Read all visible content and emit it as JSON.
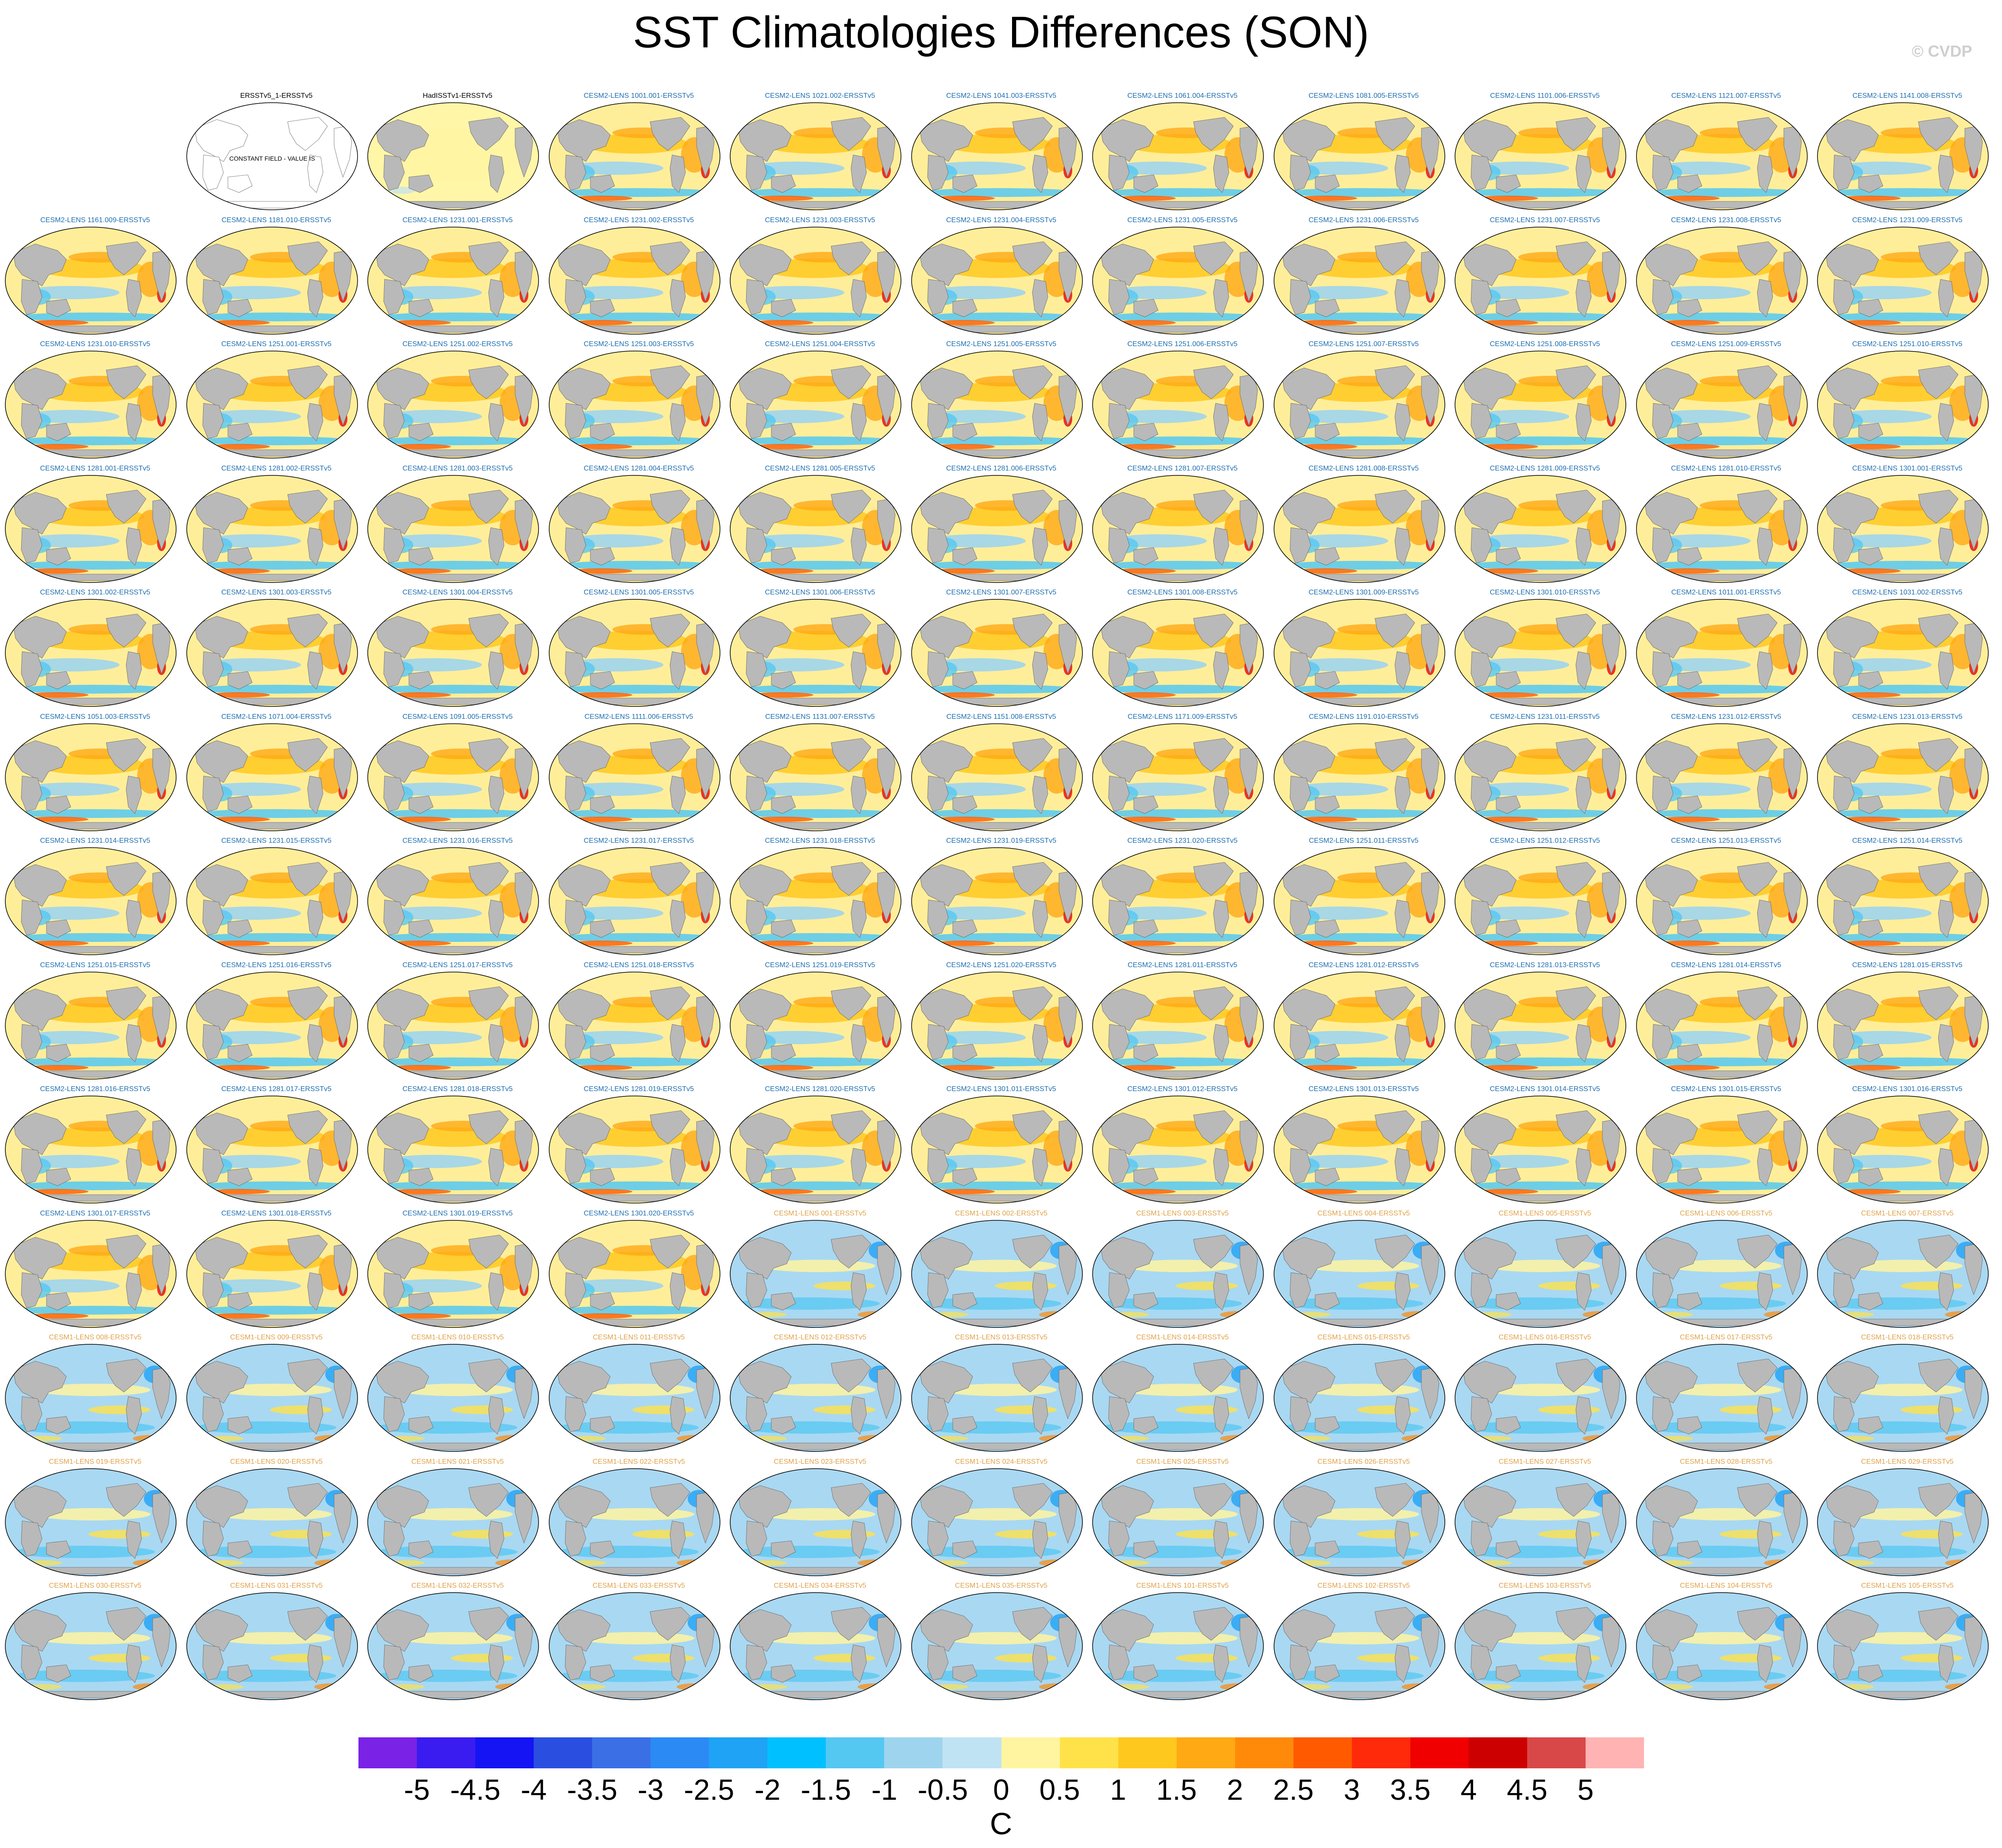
{
  "title": "SST Climatologies Differences (SON)",
  "copyright": "© CVDP",
  "colors": {
    "ocean_base": "#ffee99",
    "land": "#b9b9b9",
    "title_obs": "#000000",
    "title_cesm2": "#1f6fb0",
    "title_cesm1": "#e0a24a"
  },
  "panels": [
    {
      "label": "",
      "kind": "empty"
    },
    {
      "label": "ERSSTv5_1-ERSSTv5",
      "kind": "constant",
      "note": "CONSTANT FIELD - VALUE IS"
    },
    {
      "label": "HadISSTv1-ERSSTv5",
      "kind": "obs"
    },
    {
      "label": "CESM2-LENS 1001.001-ERSSTv5",
      "kind": "cesm2"
    },
    {
      "label": "CESM2-LENS 1021.002-ERSSTv5",
      "kind": "cesm2"
    },
    {
      "label": "CESM2-LENS 1041.003-ERSSTv5",
      "kind": "cesm2"
    },
    {
      "label": "CESM2-LENS 1061.004-ERSSTv5",
      "kind": "cesm2"
    },
    {
      "label": "CESM2-LENS 1081.005-ERSSTv5",
      "kind": "cesm2"
    },
    {
      "label": "CESM2-LENS 1101.006-ERSSTv5",
      "kind": "cesm2"
    },
    {
      "label": "CESM2-LENS 1121.007-ERSSTv5",
      "kind": "cesm2"
    },
    {
      "label": "CESM2-LENS 1141.008-ERSSTv5",
      "kind": "cesm2"
    },
    {
      "label": "CESM2-LENS 1161.009-ERSSTv5",
      "kind": "cesm2"
    },
    {
      "label": "CESM2-LENS 1181.010-ERSSTv5",
      "kind": "cesm2"
    },
    {
      "label": "CESM2-LENS 1231.001-ERSSTv5",
      "kind": "cesm2"
    },
    {
      "label": "CESM2-LENS 1231.002-ERSSTv5",
      "kind": "cesm2"
    },
    {
      "label": "CESM2-LENS 1231.003-ERSSTv5",
      "kind": "cesm2"
    },
    {
      "label": "CESM2-LENS 1231.004-ERSSTv5",
      "kind": "cesm2"
    },
    {
      "label": "CESM2-LENS 1231.005-ERSSTv5",
      "kind": "cesm2"
    },
    {
      "label": "CESM2-LENS 1231.006-ERSSTv5",
      "kind": "cesm2"
    },
    {
      "label": "CESM2-LENS 1231.007-ERSSTv5",
      "kind": "cesm2"
    },
    {
      "label": "CESM2-LENS 1231.008-ERSSTv5",
      "kind": "cesm2"
    },
    {
      "label": "CESM2-LENS 1231.009-ERSSTv5",
      "kind": "cesm2"
    },
    {
      "label": "CESM2-LENS 1231.010-ERSSTv5",
      "kind": "cesm2"
    },
    {
      "label": "CESM2-LENS 1251.001-ERSSTv5",
      "kind": "cesm2"
    },
    {
      "label": "CESM2-LENS 1251.002-ERSSTv5",
      "kind": "cesm2"
    },
    {
      "label": "CESM2-LENS 1251.003-ERSSTv5",
      "kind": "cesm2"
    },
    {
      "label": "CESM2-LENS 1251.004-ERSSTv5",
      "kind": "cesm2"
    },
    {
      "label": "CESM2-LENS 1251.005-ERSSTv5",
      "kind": "cesm2"
    },
    {
      "label": "CESM2-LENS 1251.006-ERSSTv5",
      "kind": "cesm2"
    },
    {
      "label": "CESM2-LENS 1251.007-ERSSTv5",
      "kind": "cesm2"
    },
    {
      "label": "CESM2-LENS 1251.008-ERSSTv5",
      "kind": "cesm2"
    },
    {
      "label": "CESM2-LENS 1251.009-ERSSTv5",
      "kind": "cesm2"
    },
    {
      "label": "CESM2-LENS 1251.010-ERSSTv5",
      "kind": "cesm2"
    },
    {
      "label": "CESM2-LENS 1281.001-ERSSTv5",
      "kind": "cesm2"
    },
    {
      "label": "CESM2-LENS 1281.002-ERSSTv5",
      "kind": "cesm2"
    },
    {
      "label": "CESM2-LENS 1281.003-ERSSTv5",
      "kind": "cesm2"
    },
    {
      "label": "CESM2-LENS 1281.004-ERSSTv5",
      "kind": "cesm2"
    },
    {
      "label": "CESM2-LENS 1281.005-ERSSTv5",
      "kind": "cesm2"
    },
    {
      "label": "CESM2-LENS 1281.006-ERSSTv5",
      "kind": "cesm2"
    },
    {
      "label": "CESM2-LENS 1281.007-ERSSTv5",
      "kind": "cesm2"
    },
    {
      "label": "CESM2-LENS 1281.008-ERSSTv5",
      "kind": "cesm2"
    },
    {
      "label": "CESM2-LENS 1281.009-ERSSTv5",
      "kind": "cesm2"
    },
    {
      "label": "CESM2-LENS 1281.010-ERSSTv5",
      "kind": "cesm2"
    },
    {
      "label": "CESM2-LENS 1301.001-ERSSTv5",
      "kind": "cesm2"
    },
    {
      "label": "CESM2-LENS 1301.002-ERSSTv5",
      "kind": "cesm2"
    },
    {
      "label": "CESM2-LENS 1301.003-ERSSTv5",
      "kind": "cesm2"
    },
    {
      "label": "CESM2-LENS 1301.004-ERSSTv5",
      "kind": "cesm2"
    },
    {
      "label": "CESM2-LENS 1301.005-ERSSTv5",
      "kind": "cesm2"
    },
    {
      "label": "CESM2-LENS 1301.006-ERSSTv5",
      "kind": "cesm2"
    },
    {
      "label": "CESM2-LENS 1301.007-ERSSTv5",
      "kind": "cesm2"
    },
    {
      "label": "CESM2-LENS 1301.008-ERSSTv5",
      "kind": "cesm2"
    },
    {
      "label": "CESM2-LENS 1301.009-ERSSTv5",
      "kind": "cesm2"
    },
    {
      "label": "CESM2-LENS 1301.010-ERSSTv5",
      "kind": "cesm2"
    },
    {
      "label": "CESM2-LENS 1011.001-ERSSTv5",
      "kind": "cesm2"
    },
    {
      "label": "CESM2-LENS 1031.002-ERSSTv5",
      "kind": "cesm2"
    },
    {
      "label": "CESM2-LENS 1051.003-ERSSTv5",
      "kind": "cesm2"
    },
    {
      "label": "CESM2-LENS 1071.004-ERSSTv5",
      "kind": "cesm2"
    },
    {
      "label": "CESM2-LENS 1091.005-ERSSTv5",
      "kind": "cesm2"
    },
    {
      "label": "CESM2-LENS 1111.006-ERSSTv5",
      "kind": "cesm2"
    },
    {
      "label": "CESM2-LENS 1131.007-ERSSTv5",
      "kind": "cesm2"
    },
    {
      "label": "CESM2-LENS 1151.008-ERSSTv5",
      "kind": "cesm2"
    },
    {
      "label": "CESM2-LENS 1171.009-ERSSTv5",
      "kind": "cesm2"
    },
    {
      "label": "CESM2-LENS 1191.010-ERSSTv5",
      "kind": "cesm2"
    },
    {
      "label": "CESM2-LENS 1231.011-ERSSTv5",
      "kind": "cesm2"
    },
    {
      "label": "CESM2-LENS 1231.012-ERSSTv5",
      "kind": "cesm2"
    },
    {
      "label": "CESM2-LENS 1231.013-ERSSTv5",
      "kind": "cesm2"
    },
    {
      "label": "CESM2-LENS 1231.014-ERSSTv5",
      "kind": "cesm2"
    },
    {
      "label": "CESM2-LENS 1231.015-ERSSTv5",
      "kind": "cesm2"
    },
    {
      "label": "CESM2-LENS 1231.016-ERSSTv5",
      "kind": "cesm2"
    },
    {
      "label": "CESM2-LENS 1231.017-ERSSTv5",
      "kind": "cesm2"
    },
    {
      "label": "CESM2-LENS 1231.018-ERSSTv5",
      "kind": "cesm2"
    },
    {
      "label": "CESM2-LENS 1231.019-ERSSTv5",
      "kind": "cesm2"
    },
    {
      "label": "CESM2-LENS 1231.020-ERSSTv5",
      "kind": "cesm2"
    },
    {
      "label": "CESM2-LENS 1251.011-ERSSTv5",
      "kind": "cesm2"
    },
    {
      "label": "CESM2-LENS 1251.012-ERSSTv5",
      "kind": "cesm2"
    },
    {
      "label": "CESM2-LENS 1251.013-ERSSTv5",
      "kind": "cesm2"
    },
    {
      "label": "CESM2-LENS 1251.014-ERSSTv5",
      "kind": "cesm2"
    },
    {
      "label": "CESM2-LENS 1251.015-ERSSTv5",
      "kind": "cesm2"
    },
    {
      "label": "CESM2-LENS 1251.016-ERSSTv5",
      "kind": "cesm2"
    },
    {
      "label": "CESM2-LENS 1251.017-ERSSTv5",
      "kind": "cesm2"
    },
    {
      "label": "CESM2-LENS 1251.018-ERSSTv5",
      "kind": "cesm2"
    },
    {
      "label": "CESM2-LENS 1251.019-ERSSTv5",
      "kind": "cesm2"
    },
    {
      "label": "CESM2-LENS 1251.020-ERSSTv5",
      "kind": "cesm2"
    },
    {
      "label": "CESM2-LENS 1281.011-ERSSTv5",
      "kind": "cesm2"
    },
    {
      "label": "CESM2-LENS 1281.012-ERSSTv5",
      "kind": "cesm2"
    },
    {
      "label": "CESM2-LENS 1281.013-ERSSTv5",
      "kind": "cesm2"
    },
    {
      "label": "CESM2-LENS 1281.014-ERSSTv5",
      "kind": "cesm2"
    },
    {
      "label": "CESM2-LENS 1281.015-ERSSTv5",
      "kind": "cesm2"
    },
    {
      "label": "CESM2-LENS 1281.016-ERSSTv5",
      "kind": "cesm2"
    },
    {
      "label": "CESM2-LENS 1281.017-ERSSTv5",
      "kind": "cesm2"
    },
    {
      "label": "CESM2-LENS 1281.018-ERSSTv5",
      "kind": "cesm2"
    },
    {
      "label": "CESM2-LENS 1281.019-ERSSTv5",
      "kind": "cesm2"
    },
    {
      "label": "CESM2-LENS 1281.020-ERSSTv5",
      "kind": "cesm2"
    },
    {
      "label": "CESM2-LENS 1301.011-ERSSTv5",
      "kind": "cesm2"
    },
    {
      "label": "CESM2-LENS 1301.012-ERSSTv5",
      "kind": "cesm2"
    },
    {
      "label": "CESM2-LENS 1301.013-ERSSTv5",
      "kind": "cesm2"
    },
    {
      "label": "CESM2-LENS 1301.014-ERSSTv5",
      "kind": "cesm2"
    },
    {
      "label": "CESM2-LENS 1301.015-ERSSTv5",
      "kind": "cesm2"
    },
    {
      "label": "CESM2-LENS 1301.016-ERSSTv5",
      "kind": "cesm2"
    },
    {
      "label": "CESM2-LENS 1301.017-ERSSTv5",
      "kind": "cesm2"
    },
    {
      "label": "CESM2-LENS 1301.018-ERSSTv5",
      "kind": "cesm2"
    },
    {
      "label": "CESM2-LENS 1301.019-ERSSTv5",
      "kind": "cesm2"
    },
    {
      "label": "CESM2-LENS 1301.020-ERSSTv5",
      "kind": "cesm2"
    },
    {
      "label": "CESM1-LENS 001-ERSSTv5",
      "kind": "cesm1"
    },
    {
      "label": "CESM1-LENS 002-ERSSTv5",
      "kind": "cesm1"
    },
    {
      "label": "CESM1-LENS 003-ERSSTv5",
      "kind": "cesm1"
    },
    {
      "label": "CESM1-LENS 004-ERSSTv5",
      "kind": "cesm1"
    },
    {
      "label": "CESM1-LENS 005-ERSSTv5",
      "kind": "cesm1"
    },
    {
      "label": "CESM1-LENS 006-ERSSTv5",
      "kind": "cesm1"
    },
    {
      "label": "CESM1-LENS 007-ERSSTv5",
      "kind": "cesm1"
    },
    {
      "label": "CESM1-LENS 008-ERSSTv5",
      "kind": "cesm1"
    },
    {
      "label": "CESM1-LENS 009-ERSSTv5",
      "kind": "cesm1"
    },
    {
      "label": "CESM1-LENS 010-ERSSTv5",
      "kind": "cesm1"
    },
    {
      "label": "CESM1-LENS 011-ERSSTv5",
      "kind": "cesm1"
    },
    {
      "label": "CESM1-LENS 012-ERSSTv5",
      "kind": "cesm1"
    },
    {
      "label": "CESM1-LENS 013-ERSSTv5",
      "kind": "cesm1"
    },
    {
      "label": "CESM1-LENS 014-ERSSTv5",
      "kind": "cesm1"
    },
    {
      "label": "CESM1-LENS 015-ERSSTv5",
      "kind": "cesm1"
    },
    {
      "label": "CESM1-LENS 016-ERSSTv5",
      "kind": "cesm1"
    },
    {
      "label": "CESM1-LENS 017-ERSSTv5",
      "kind": "cesm1"
    },
    {
      "label": "CESM1-LENS 018-ERSSTv5",
      "kind": "cesm1"
    },
    {
      "label": "CESM1-LENS 019-ERSSTv5",
      "kind": "cesm1"
    },
    {
      "label": "CESM1-LENS 020-ERSSTv5",
      "kind": "cesm1"
    },
    {
      "label": "CESM1-LENS 021-ERSSTv5",
      "kind": "cesm1"
    },
    {
      "label": "CESM1-LENS 022-ERSSTv5",
      "kind": "cesm1"
    },
    {
      "label": "CESM1-LENS 023-ERSSTv5",
      "kind": "cesm1"
    },
    {
      "label": "CESM1-LENS 024-ERSSTv5",
      "kind": "cesm1"
    },
    {
      "label": "CESM1-LENS 025-ERSSTv5",
      "kind": "cesm1"
    },
    {
      "label": "CESM1-LENS 026-ERSSTv5",
      "kind": "cesm1"
    },
    {
      "label": "CESM1-LENS 027-ERSSTv5",
      "kind": "cesm1"
    },
    {
      "label": "CESM1-LENS 028-ERSSTv5",
      "kind": "cesm1"
    },
    {
      "label": "CESM1-LENS 029-ERSSTv5",
      "kind": "cesm1"
    },
    {
      "label": "CESM1-LENS 030-ERSSTv5",
      "kind": "cesm1"
    },
    {
      "label": "CESM1-LENS 031-ERSSTv5",
      "kind": "cesm1"
    },
    {
      "label": "CESM1-LENS 032-ERSSTv5",
      "kind": "cesm1"
    },
    {
      "label": "CESM1-LENS 033-ERSSTv5",
      "kind": "cesm1"
    },
    {
      "label": "CESM1-LENS 034-ERSSTv5",
      "kind": "cesm1"
    },
    {
      "label": "CESM1-LENS 035-ERSSTv5",
      "kind": "cesm1"
    },
    {
      "label": "CESM1-LENS 101-ERSSTv5",
      "kind": "cesm1"
    },
    {
      "label": "CESM1-LENS 102-ERSSTv5",
      "kind": "cesm1"
    },
    {
      "label": "CESM1-LENS 103-ERSSTv5",
      "kind": "cesm1"
    },
    {
      "label": "CESM1-LENS 104-ERSSTv5",
      "kind": "cesm1"
    },
    {
      "label": "CESM1-LENS 105-ERSSTv5",
      "kind": "cesm1"
    }
  ],
  "colorbar": {
    "colors": [
      "#7a22e6",
      "#3a1cf0",
      "#1414f5",
      "#2a4fe0",
      "#3a6fe6",
      "#2c8af5",
      "#1fa3f5",
      "#00c0ff",
      "#55c8f2",
      "#9fd4ee",
      "#bfe3f3",
      "#fff5a0",
      "#ffe24a",
      "#ffc81e",
      "#ffa914",
      "#ff8a0a",
      "#ff5a00",
      "#ff2a0a",
      "#f00000",
      "#cc0000",
      "#d84848",
      "#ffb3b3"
    ],
    "labels": [
      "-5",
      "-4.5",
      "-4",
      "-3.5",
      "-3",
      "-2.5",
      "-2",
      "-1.5",
      "-1",
      "-0.5",
      "0",
      "0.5",
      "1",
      "1.5",
      "2",
      "2.5",
      "3",
      "3.5",
      "4",
      "4.5",
      "5"
    ],
    "unit": "C"
  }
}
